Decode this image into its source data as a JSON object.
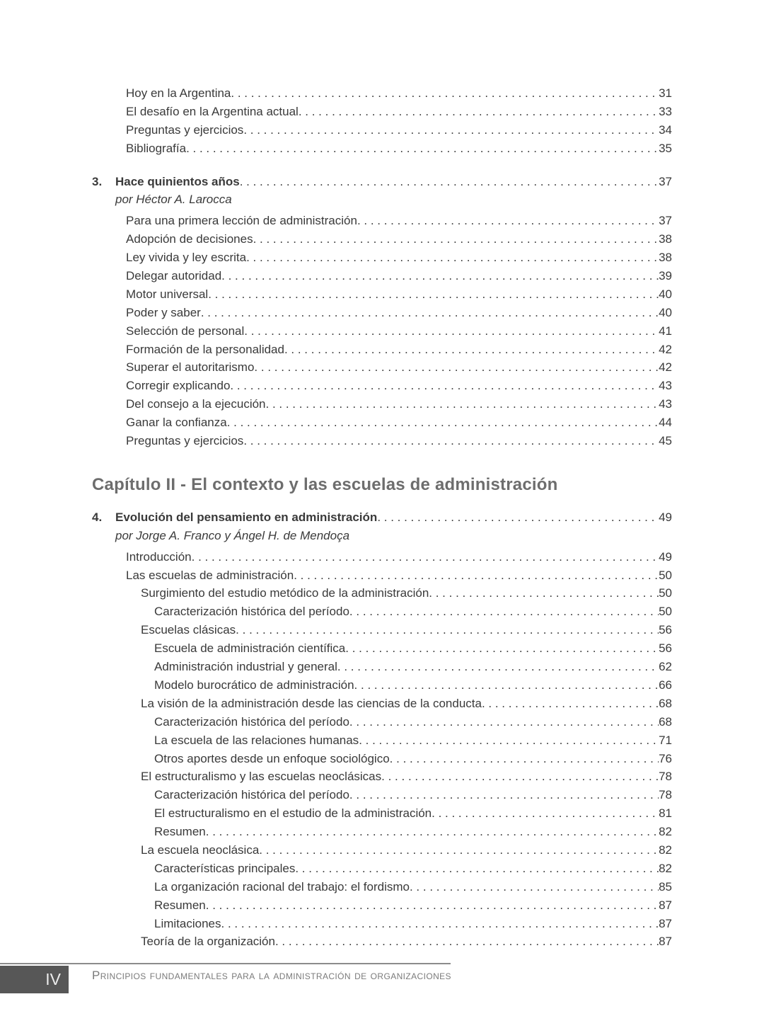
{
  "toc": {
    "items": [
      {
        "type": "entry",
        "level": 1,
        "label": "Hoy en la Argentina",
        "page": "31"
      },
      {
        "type": "entry",
        "level": 1,
        "label": "El desafío en la Argentina actual",
        "page": "33"
      },
      {
        "type": "entry",
        "level": 1,
        "label": "Preguntas y ejercicios",
        "page": "34"
      },
      {
        "type": "entry",
        "level": 1,
        "label": "Bibliografía",
        "page": "35"
      },
      {
        "type": "numbered",
        "number": "3.",
        "label": "Hace quinientos años",
        "page": "37"
      },
      {
        "type": "byline",
        "label": "por Héctor A. Larocca"
      },
      {
        "type": "entry",
        "level": 1,
        "label": "Para una primera lección de administración",
        "page": "37"
      },
      {
        "type": "entry",
        "level": 1,
        "label": "Adopción de decisiones",
        "page": "38"
      },
      {
        "type": "entry",
        "level": 1,
        "label": "Ley vivida y ley escrita",
        "page": "38"
      },
      {
        "type": "entry",
        "level": 1,
        "label": "Delegar autoridad",
        "page": "39"
      },
      {
        "type": "entry",
        "level": 1,
        "label": "Motor universal",
        "page": "40"
      },
      {
        "type": "entry",
        "level": 1,
        "label": "Poder y saber",
        "page": "40"
      },
      {
        "type": "entry",
        "level": 1,
        "label": "Selección de personal",
        "page": "41"
      },
      {
        "type": "entry",
        "level": 1,
        "label": "Formación de la personalidad",
        "page": "42"
      },
      {
        "type": "entry",
        "level": 1,
        "label": "Superar el autoritarismo",
        "page": "42"
      },
      {
        "type": "entry",
        "level": 1,
        "label": "Corregir explicando",
        "page": "43"
      },
      {
        "type": "entry",
        "level": 1,
        "label": "Del consejo a la ejecución",
        "page": "43"
      },
      {
        "type": "entry",
        "level": 1,
        "label": "Ganar la confianza",
        "page": "44"
      },
      {
        "type": "entry",
        "level": 1,
        "label": "Preguntas y ejercicios",
        "page": "45"
      },
      {
        "type": "chapter_heading",
        "label": "Capítulo II - El contexto y las escuelas de administración"
      },
      {
        "type": "numbered",
        "number": "4.",
        "label": "Evolución del pensamiento en administración",
        "page": "49"
      },
      {
        "type": "byline",
        "label": "por Jorge A. Franco y Ángel H. de Mendoça"
      },
      {
        "type": "entry",
        "level": 1,
        "label": "Introducción",
        "page": "49"
      },
      {
        "type": "entry",
        "level": 1,
        "label": "Las escuelas de administración",
        "page": "50"
      },
      {
        "type": "entry",
        "level": 2,
        "label": "Surgimiento del estudio metódico de la administración",
        "page": "50"
      },
      {
        "type": "entry",
        "level": 3,
        "label": "Caracterización histórica del período",
        "page": "50"
      },
      {
        "type": "entry",
        "level": 2,
        "label": "Escuelas clásicas",
        "page": "56"
      },
      {
        "type": "entry",
        "level": 3,
        "label": "Escuela de administración científica",
        "page": "56"
      },
      {
        "type": "entry",
        "level": 3,
        "label": "Administración industrial y general",
        "page": "62"
      },
      {
        "type": "entry",
        "level": 3,
        "label": "Modelo burocrático de administración",
        "page": "66"
      },
      {
        "type": "entry",
        "level": 2,
        "label": "La visión de la administración desde las ciencias de la conducta",
        "page": "68"
      },
      {
        "type": "entry",
        "level": 3,
        "label": "Caracterización histórica del período",
        "page": "68"
      },
      {
        "type": "entry",
        "level": 3,
        "label": "La escuela de las relaciones humanas",
        "page": "71"
      },
      {
        "type": "entry",
        "level": 3,
        "label": "Otros aportes desde un enfoque sociológico",
        "page": "76"
      },
      {
        "type": "entry",
        "level": 2,
        "label": "El estructuralismo y las escuelas neoclásicas",
        "page": "78"
      },
      {
        "type": "entry",
        "level": 3,
        "label": "Caracterización histórica del período",
        "page": "78"
      },
      {
        "type": "entry",
        "level": 3,
        "label": "El estructuralismo en el estudio de la administración",
        "page": "81"
      },
      {
        "type": "entry",
        "level": 3,
        "label": "Resumen",
        "page": "82"
      },
      {
        "type": "entry",
        "level": 2,
        "label": "La escuela neoclásica",
        "page": "82"
      },
      {
        "type": "entry",
        "level": 3,
        "label": "Características principales",
        "page": "82"
      },
      {
        "type": "entry",
        "level": 3,
        "label": "La organización racional del trabajo: el fordismo",
        "page": "85"
      },
      {
        "type": "entry",
        "level": 3,
        "label": "Resumen",
        "page": "87"
      },
      {
        "type": "entry",
        "level": 3,
        "label": "Limitaciones",
        "page": "87"
      },
      {
        "type": "entry",
        "level": 2,
        "label": "Teoría de la organización",
        "page": "87"
      }
    ]
  },
  "footer": {
    "page_number": "IV",
    "book_title": "Principios fundamentales para la administración de organizaciones"
  }
}
